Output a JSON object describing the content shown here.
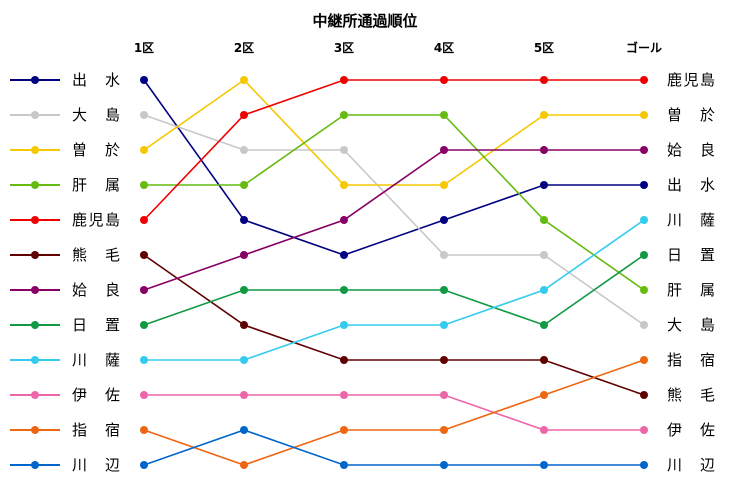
{
  "chart_data": {
    "type": "line",
    "title": "中継所通過順位",
    "categories": [
      "1区",
      "2区",
      "3区",
      "4区",
      "5区",
      "ゴール"
    ],
    "ylim": [
      1,
      12
    ],
    "y_inverted": true,
    "legend_position": "left",
    "grid": false,
    "series": [
      {
        "name": "出水",
        "color": "#000080",
        "values": [
          1,
          5,
          6,
          5,
          4,
          4
        ]
      },
      {
        "name": "大島",
        "color": "#c8c8c8",
        "values": [
          2,
          3,
          3,
          6,
          6,
          8
        ]
      },
      {
        "name": "曽於",
        "color": "#f5c800",
        "values": [
          3,
          1,
          4,
          4,
          2,
          2
        ]
      },
      {
        "name": "肝属",
        "color": "#66bb11",
        "values": [
          4,
          4,
          2,
          2,
          5,
          7
        ]
      },
      {
        "name": "鹿児島",
        "color": "#ee0000",
        "values": [
          5,
          2,
          1,
          1,
          1,
          1
        ]
      },
      {
        "name": "熊毛",
        "color": "#600000",
        "values": [
          6,
          8,
          9,
          9,
          9,
          10
        ]
      },
      {
        "name": "姶良",
        "color": "#880066",
        "values": [
          7,
          6,
          5,
          3,
          3,
          3
        ]
      },
      {
        "name": "日置",
        "color": "#119944",
        "values": [
          8,
          7,
          7,
          7,
          8,
          6
        ]
      },
      {
        "name": "川薩",
        "color": "#33ccee",
        "values": [
          9,
          9,
          8,
          8,
          7,
          5
        ]
      },
      {
        "name": "伊佐",
        "color": "#ee66aa",
        "values": [
          10,
          10,
          10,
          10,
          11,
          11
        ]
      },
      {
        "name": "指宿",
        "color": "#ee6611",
        "values": [
          11,
          12,
          11,
          11,
          10,
          9
        ]
      },
      {
        "name": "川辺",
        "color": "#0066cc",
        "values": [
          12,
          11,
          12,
          12,
          12,
          12
        ]
      }
    ]
  }
}
